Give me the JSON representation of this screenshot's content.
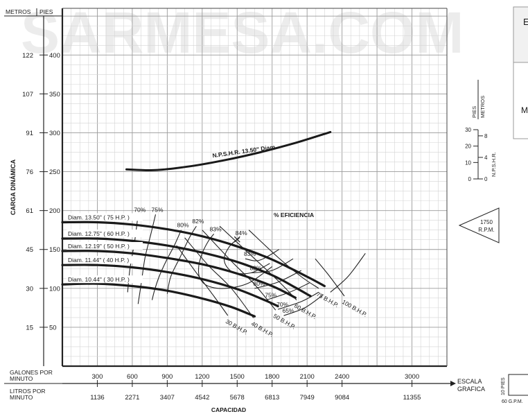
{
  "watermark": "SARMESA.COM",
  "chart_data": {
    "type": "line",
    "y_axis": {
      "label": "CARGA DINÁMICA",
      "header_metros": "METROS",
      "header_pies": "PIES",
      "ft_ticks": [
        50,
        100,
        150,
        200,
        250,
        300,
        350,
        400
      ],
      "m_ticks": [
        "15",
        "30",
        "45",
        "61",
        "76",
        "91",
        "107",
        "122"
      ],
      "ft_range": [
        0,
        460
      ]
    },
    "x_axis": {
      "title": "CAPACIDAD",
      "gpm_label": "GALONES POR MINUTO",
      "lpm_label": "LITROS POR MINUTO",
      "gpm_ticks": [
        300,
        600,
        900,
        1200,
        1500,
        1800,
        2100,
        2400,
        3000
      ],
      "lpm_ticks": [
        "1136",
        "2271",
        "3407",
        "4542",
        "5678",
        "6813",
        "7949",
        "9084",
        "11355"
      ],
      "gpm_range": [
        0,
        3300
      ]
    },
    "scale_graphic": {
      "label_line1": "ESCALA",
      "label_line2": "GRAFICA",
      "pies_label": "10 PIES",
      "gpm_label": "60 G.P.M."
    },
    "npsh_axis": {
      "pies_label": "PIES",
      "metros_label": "METROS",
      "title": "N.P.S.H.R.",
      "ft_ticks": [
        0,
        10,
        20,
        30
      ],
      "m_ticks": [
        0,
        4,
        8
      ]
    },
    "rpm_badge": {
      "line1": "1750",
      "line2": "R.P.M."
    },
    "efficiency_title": "% EFICIENCIA",
    "side_box_letters": {
      "top": "E",
      "mid": "M"
    },
    "npsh_curve": {
      "label": "N.P.S.H.R. 13.50\" Diam.",
      "gpm": [
        550,
        800,
        1100,
        1400,
        1700,
        2000,
        2300
      ],
      "head_ft": [
        253,
        252,
        257,
        265,
        275,
        287,
        301
      ]
    },
    "series": [
      {
        "name": "Diam. 13.50\" ( 75 H.P. )",
        "gpm": [
          0,
          300,
          600,
          900,
          1200,
          1500,
          1800,
          2100,
          2250
        ],
        "head_ft": [
          185,
          185,
          182,
          176,
          167,
          154,
          137,
          115,
          103
        ]
      },
      {
        "name": "Diam. 12.75\" ( 60 H.P. )",
        "gpm": [
          0,
          300,
          600,
          900,
          1200,
          1500,
          1800,
          2000,
          2130
        ],
        "head_ft": [
          164,
          164,
          161,
          155,
          146,
          134,
          117,
          101,
          90
        ]
      },
      {
        "name": "Diam. 12.19\" ( 50 H.P. )",
        "gpm": [
          0,
          300,
          600,
          900,
          1200,
          1500,
          1800,
          2000
        ],
        "head_ft": [
          148,
          148,
          145,
          139,
          131,
          119,
          103,
          88
        ]
      },
      {
        "name": "Diam. 11.44\" ( 40 H.P. )",
        "gpm": [
          0,
          300,
          600,
          900,
          1200,
          1500,
          1750,
          1850
        ],
        "head_ft": [
          130,
          130,
          127,
          121,
          112,
          99,
          84,
          77
        ]
      },
      {
        "name": "Diam. 10.44\" ( 30 H.P. )",
        "gpm": [
          0,
          300,
          600,
          900,
          1200,
          1450,
          1650
        ],
        "head_ft": [
          105,
          106,
          103,
          97,
          87,
          76,
          64
        ]
      }
    ],
    "efficiency_curves": [
      {
        "label": "70%",
        "gpm": [
          650,
          620,
          580,
          560
        ],
        "head_ft": [
          195,
          160,
          125,
          95
        ]
      },
      {
        "label": "75%",
        "gpm": [
          800,
          760,
          710,
          680,
          650
        ],
        "head_ft": [
          195,
          170,
          140,
          110,
          80
        ]
      },
      {
        "label": "80%",
        "gpm": [
          1020,
          960,
          890,
          830,
          790,
          770
        ],
        "head_ft": [
          175,
          155,
          135,
          115,
          97,
          85
        ]
      },
      {
        "label": "82%",
        "gpm": [
          1150,
          1090,
          1010,
          930,
          900
        ],
        "head_ft": [
          180,
          165,
          140,
          115,
          93
        ]
      },
      {
        "label": "83%",
        "gpm": [
          1300,
          1250,
          1200,
          1170,
          1180,
          1250,
          1400,
          1600,
          1800
        ],
        "head_ft": [
          170,
          160,
          145,
          128,
          113,
          103,
          100,
          107,
          128
        ]
      },
      {
        "label": "84%",
        "gpm": [
          1520,
          1440,
          1390,
          1410,
          1480,
          1620,
          1780
        ],
        "head_ft": [
          165,
          155,
          140,
          128,
          120,
          120,
          132
        ]
      },
      {
        "label": "83%",
        "gpm": [
          1570,
          1690,
          1860
        ],
        "head_ft": [
          138,
          136,
          150
        ]
      },
      {
        "label": "82%",
        "gpm": [
          1620,
          1800,
          1980
        ],
        "head_ft": [
          120,
          123,
          138
        ]
      },
      {
        "label": "80%",
        "gpm": [
          1650,
          1850,
          2050
        ],
        "head_ft": [
          100,
          108,
          123
        ]
      },
      {
        "label": "75%",
        "gpm": [
          1750,
          1950,
          2120
        ],
        "head_ft": [
          85,
          95,
          107
        ]
      },
      {
        "label": "70%",
        "gpm": [
          1850,
          2050,
          2200
        ],
        "head_ft": [
          73,
          83,
          95
        ]
      },
      {
        "label": "65%",
        "gpm": [
          1900,
          2080,
          2240
        ],
        "head_ft": [
          65,
          75,
          92
        ]
      }
    ],
    "bhp_lines": [
      {
        "label": "30 B.H.P.",
        "gpm": [
          980,
          1150,
          1300,
          1420
        ],
        "head_ft": [
          155,
          120,
          90,
          65
        ]
      },
      {
        "label": "40 B.H.P.",
        "gpm": [
          1050,
          1250,
          1450,
          1640
        ],
        "head_ft": [
          165,
          130,
          100,
          62
        ]
      },
      {
        "label": "50 B.H.P.",
        "gpm": [
          1200,
          1450,
          1650,
          1830
        ],
        "head_ft": [
          175,
          135,
          105,
          72
        ]
      },
      {
        "label": "60 B.H.P.",
        "gpm": [
          1350,
          1600,
          1850,
          2010
        ],
        "head_ft": [
          180,
          145,
          110,
          85
        ]
      },
      {
        "label": "75 B.H.P.",
        "gpm": [
          1600,
          1850,
          2050,
          2200
        ],
        "head_ft": [
          175,
          140,
          115,
          100
        ]
      },
      {
        "label": "100 B.H.P.",
        "gpm": [
          2170,
          2280,
          2420
        ],
        "head_ft": [
          138,
          118,
          90
        ]
      }
    ],
    "ticks_100bhp_tail": {
      "gpm": [
        2300,
        2450,
        2600
      ],
      "head_ft": [
        95,
        115,
        145
      ]
    }
  }
}
